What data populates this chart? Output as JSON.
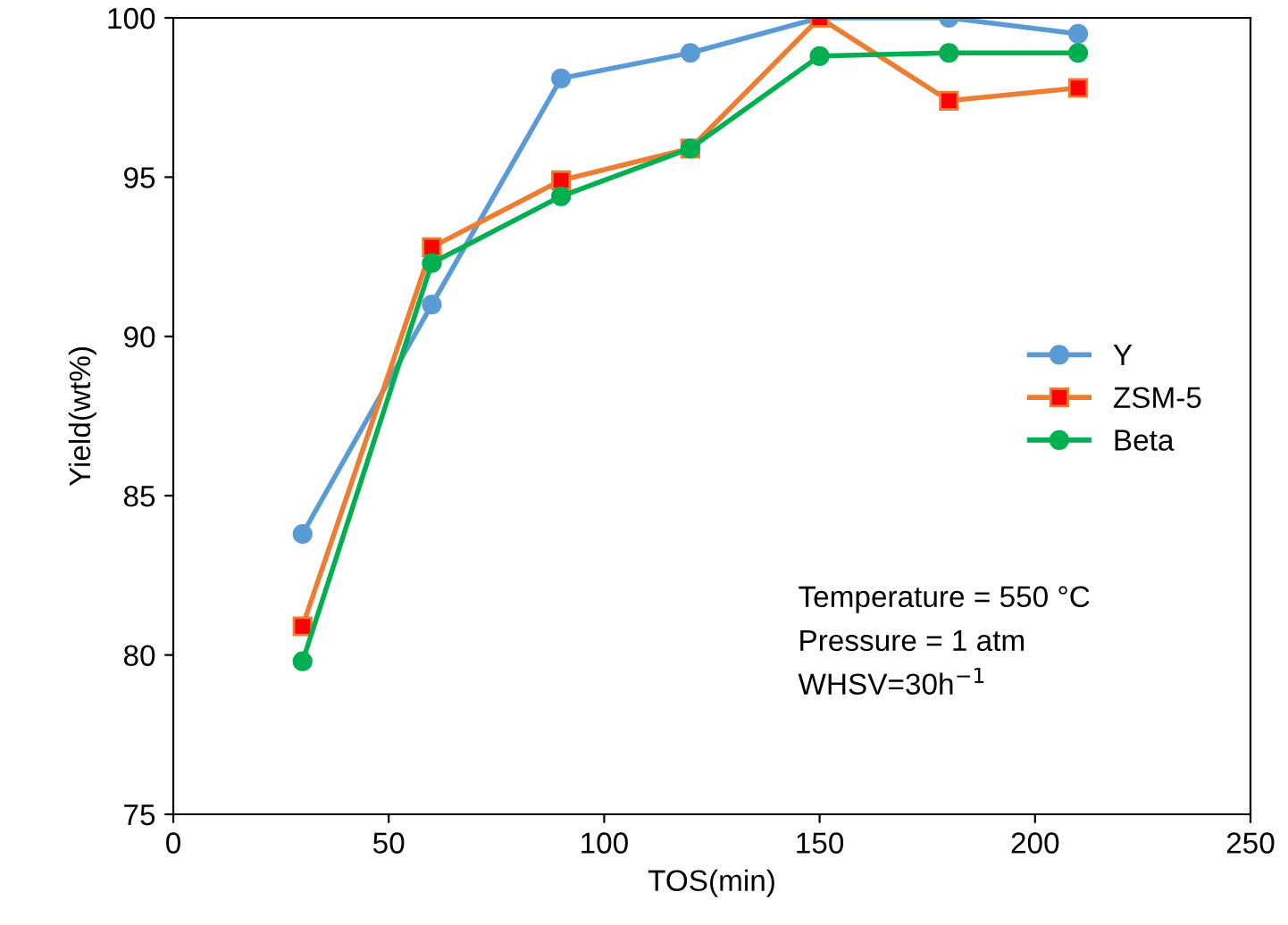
{
  "chart_data": {
    "type": "line",
    "xlabel": "TOS(min)",
    "ylabel": "Yield(wt%)",
    "xlim": [
      0,
      250
    ],
    "xticks": [
      0,
      50,
      100,
      150,
      200,
      250
    ],
    "ylim": [
      75,
      100
    ],
    "yticks": [
      75,
      80,
      85,
      90,
      95,
      100
    ],
    "x": [
      30,
      60,
      90,
      120,
      150,
      180,
      210
    ],
    "series": [
      {
        "name": "Y",
        "color": "#5b9bd5",
        "marker": "circle",
        "values": [
          83.8,
          91.0,
          98.1,
          98.9,
          100,
          100,
          99.5
        ]
      },
      {
        "name": "ZSM-5",
        "color": "#ed7d31",
        "marker": "square",
        "values": [
          80.9,
          92.8,
          94.9,
          95.9,
          100,
          97.4,
          97.8
        ]
      },
      {
        "name": "Beta",
        "color": "#00b050",
        "marker": "circle",
        "values": [
          79.8,
          92.3,
          94.4,
          95.9,
          98.8,
          98.9,
          98.9
        ]
      }
    ],
    "legend": "right",
    "grid": false,
    "line_style": "solid",
    "annotations": [
      "Temperature = 550 °C",
      "Pressure = 1 atm",
      "WHSV=30h$^{−1}$"
    ]
  }
}
